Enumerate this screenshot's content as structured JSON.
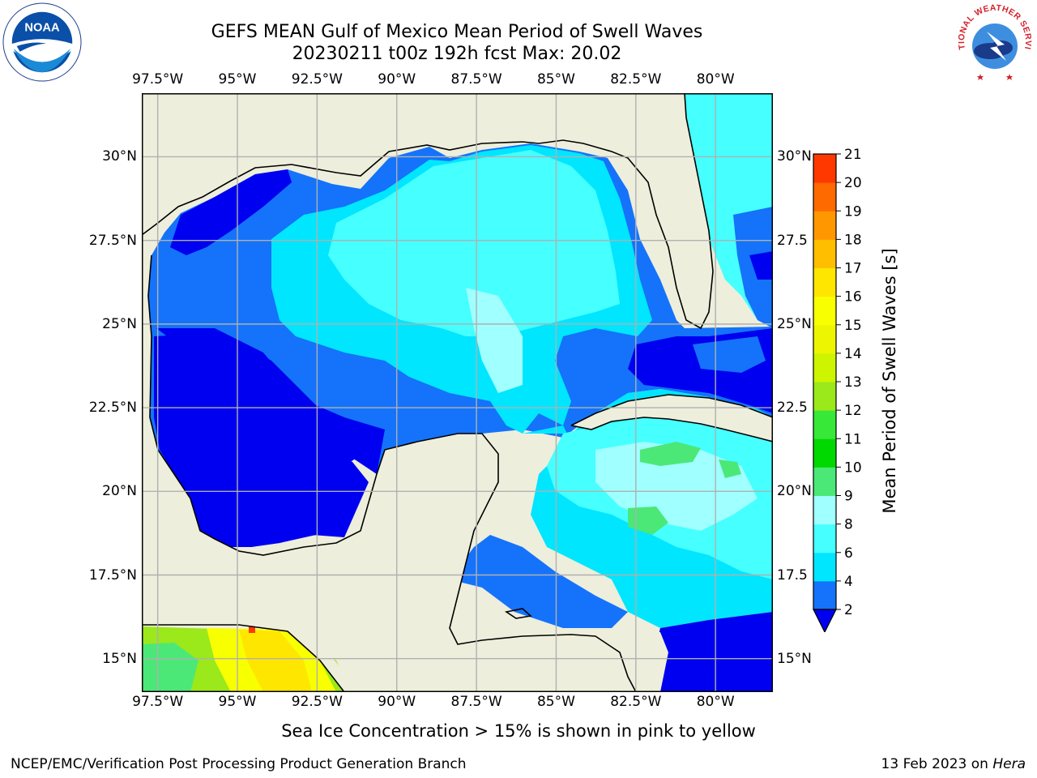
{
  "header": {
    "title_line1": "GEFS MEAN Gulf of Mexico Mean Period of Swell Waves",
    "title_line2": "20230211 t00z 192h fcst   Max: 20.02"
  },
  "map": {
    "lon_ticks": [
      {
        "value": -97.5,
        "label": "97.5°W"
      },
      {
        "value": -95,
        "label": "95°W"
      },
      {
        "value": -92.5,
        "label": "92.5°W"
      },
      {
        "value": -90,
        "label": "90°W"
      },
      {
        "value": -87.5,
        "label": "87.5°W"
      },
      {
        "value": -85,
        "label": "85°W"
      },
      {
        "value": -82.5,
        "label": "82.5°W"
      },
      {
        "value": -80,
        "label": "80°W"
      }
    ],
    "lat_ticks_left": [
      {
        "value": 30,
        "label": "30°N"
      },
      {
        "value": 27.5,
        "label": "27.5°N"
      },
      {
        "value": 25,
        "label": "25°N"
      },
      {
        "value": 22.5,
        "label": "22.5°N"
      },
      {
        "value": 20,
        "label": "20°N"
      },
      {
        "value": 17.5,
        "label": "17.5°N"
      },
      {
        "value": 15,
        "label": "15°N"
      }
    ],
    "lat_ticks_right": [
      {
        "value": 30,
        "label": "30°N"
      },
      {
        "value": 27.5,
        "label": "27.5"
      },
      {
        "value": 25,
        "label": "25°N"
      },
      {
        "value": 22.5,
        "label": "22.5"
      },
      {
        "value": 20,
        "label": "20°N"
      },
      {
        "value": 17.5,
        "label": "17.5"
      },
      {
        "value": 15,
        "label": "15°N"
      }
    ],
    "lon_range": [
      -98,
      -78.2
    ],
    "lat_range": [
      14,
      31.9
    ],
    "land_color": "#eeeedc",
    "grid_color": "#b0b0b0"
  },
  "colorbar": {
    "label": "Mean Period of Swell Waves [s]",
    "ticks": [
      "2",
      "4",
      "6",
      "8",
      "9",
      "10",
      "11",
      "12",
      "13",
      "14",
      "15",
      "16",
      "17",
      "18",
      "19",
      "20",
      "21"
    ],
    "colors": [
      "#1473fa",
      "#00e6ff",
      "#46ffff",
      "#a0ffff",
      "#4be878",
      "#00d900",
      "#38e838",
      "#9be81b",
      "#cdf500",
      "#eef500",
      "#f8ff00",
      "#ffe600",
      "#ffbf00",
      "#ff9800",
      "#ff6a00",
      "#ff3800"
    ],
    "extend_color": "#0000f0"
  },
  "footnote": "Sea Ice Concentration > 15% is shown in pink to yellow",
  "footer": {
    "left": "NCEP/EMC/Verification Post Processing Product Generation Branch",
    "right_prefix": "13 Feb 2023 on",
    "right_host": "Hera"
  },
  "logos": {
    "noaa_text": "NOAA",
    "nws_text": "NATIONAL WEATHER SERVICE"
  }
}
